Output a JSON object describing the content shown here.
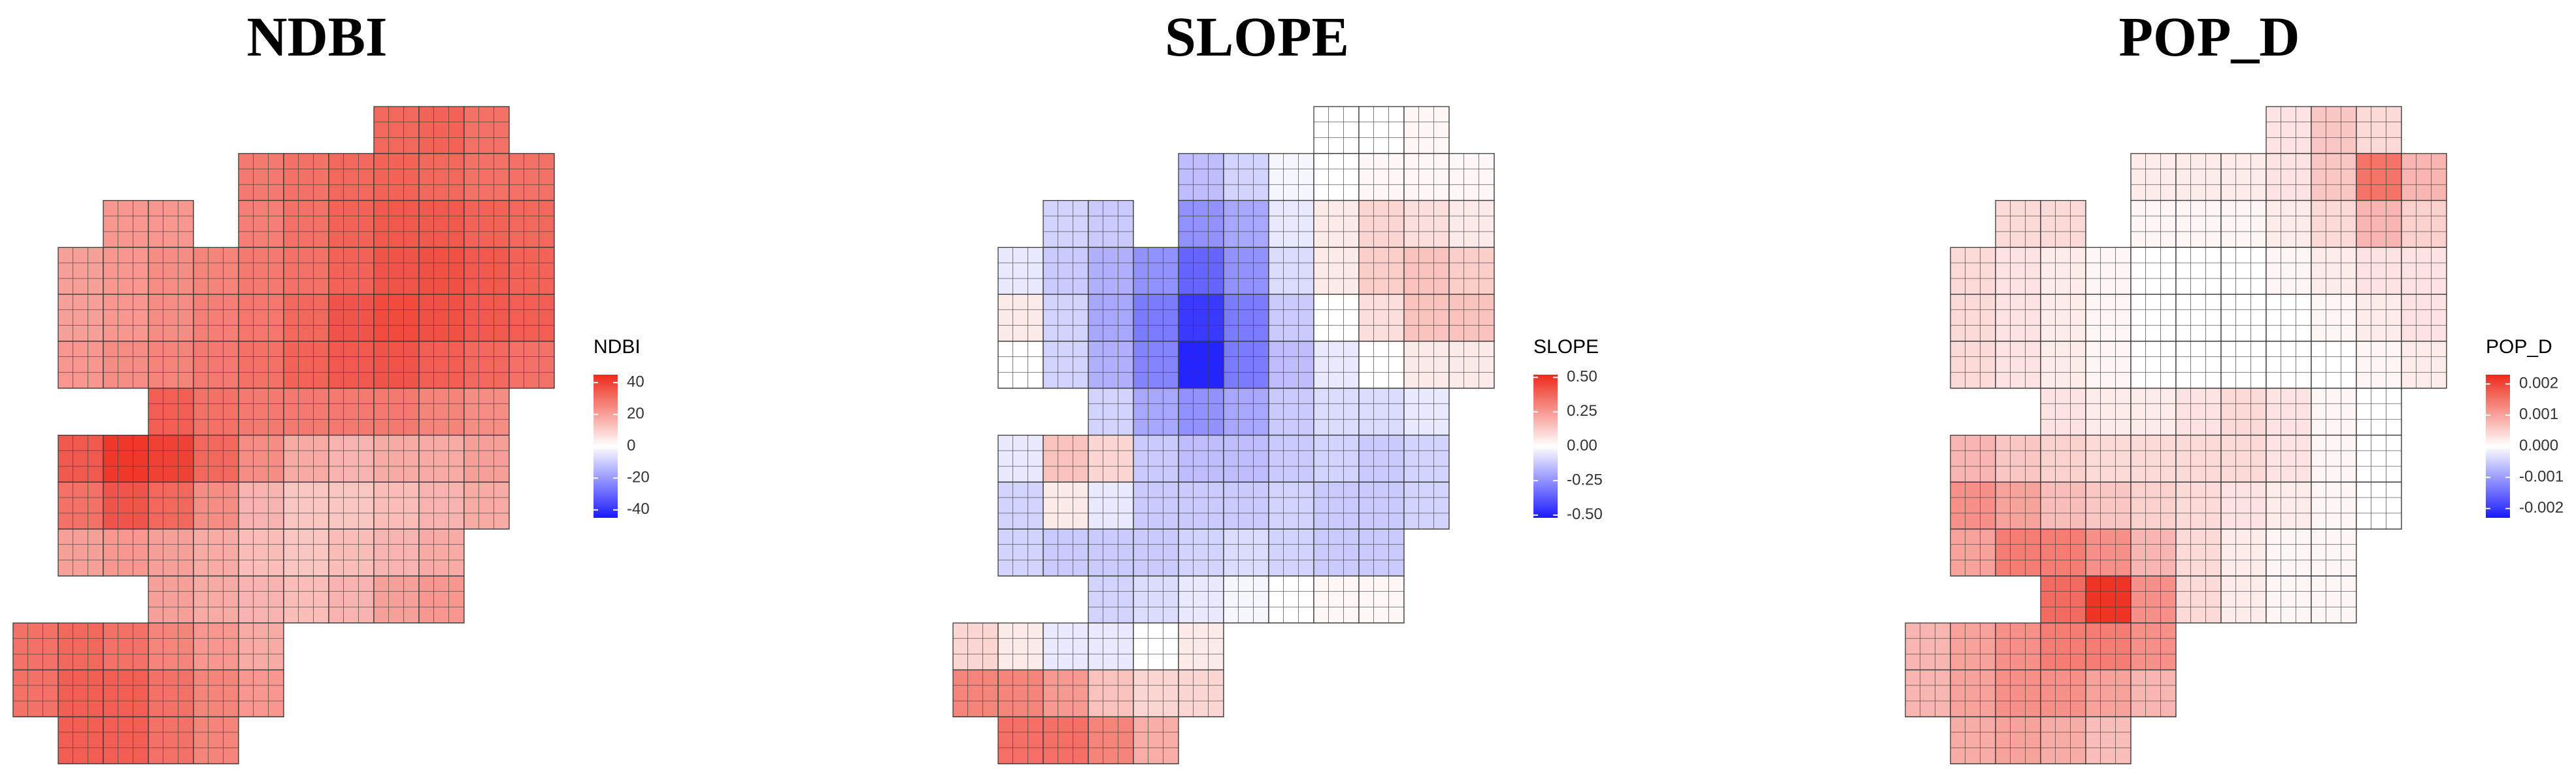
{
  "chart_data": [
    {
      "type": "heatmap",
      "title": "NDBI",
      "legend_title": "NDBI",
      "colors": {
        "low": "#1b1bff",
        "mid": "#ffffff",
        "high": "#ee2a1b"
      },
      "clim": [
        -45,
        45
      ],
      "cticks": [
        40,
        20,
        0,
        -20,
        -40
      ],
      "cells": [
        [
          null,
          null,
          null,
          null,
          null,
          null,
          null,
          null,
          32,
          33,
          30,
          null
        ],
        [
          null,
          null,
          null,
          null,
          null,
          28,
          30,
          32,
          33,
          32,
          30,
          30
        ],
        [
          null,
          null,
          22,
          22,
          null,
          27,
          30,
          33,
          35,
          35,
          33,
          32
        ],
        [
          null,
          20,
          22,
          24,
          26,
          28,
          30,
          33,
          36,
          37,
          35,
          33
        ],
        [
          null,
          20,
          22,
          24,
          27,
          29,
          32,
          36,
          38,
          37,
          35,
          34
        ],
        [
          null,
          22,
          24,
          26,
          28,
          30,
          33,
          35,
          36,
          34,
          32,
          30
        ],
        [
          null,
          null,
          null,
          34,
          30,
          28,
          28,
          28,
          28,
          26,
          24,
          null
        ],
        [
          null,
          35,
          42,
          40,
          32,
          24,
          18,
          16,
          18,
          18,
          20,
          null
        ],
        [
          null,
          30,
          36,
          32,
          24,
          16,
          12,
          12,
          14,
          16,
          18,
          null
        ],
        [
          null,
          20,
          22,
          20,
          18,
          14,
          12,
          14,
          16,
          18,
          null,
          null
        ],
        [
          null,
          null,
          null,
          20,
          18,
          16,
          14,
          16,
          20,
          22,
          null,
          null
        ],
        [
          30,
          32,
          30,
          26,
          22,
          18,
          null,
          null,
          null,
          null,
          null,
          null
        ],
        [
          30,
          34,
          34,
          30,
          26,
          22,
          null,
          null,
          null,
          null,
          null,
          null
        ],
        [
          null,
          34,
          34,
          30,
          26,
          null,
          null,
          null,
          null,
          null,
          null,
          null
        ]
      ]
    },
    {
      "type": "heatmap",
      "title": "SLOPE",
      "legend_title": "SLOPE",
      "colors": {
        "low": "#1b1bff",
        "mid": "#ffffff",
        "high": "#ee2a1b"
      },
      "clim": [
        -0.52,
        0.52
      ],
      "cticks": [
        {
          "value": 0.5,
          "label": "0.50"
        },
        {
          "value": 0.25,
          "label": "0.25"
        },
        {
          "value": 0,
          "label": "0.00"
        },
        {
          "value": -0.25,
          "label": "-0.25"
        },
        {
          "value": -0.5,
          "label": "-0.50"
        }
      ],
      "cells": [
        [
          null,
          null,
          null,
          null,
          null,
          null,
          null,
          null,
          0,
          0,
          0.02,
          null
        ],
        [
          null,
          null,
          null,
          null,
          null,
          -0.15,
          -0.1,
          -0.02,
          0,
          0.02,
          0.02,
          0.02
        ],
        [
          null,
          null,
          -0.1,
          -0.12,
          null,
          -0.25,
          -0.2,
          -0.05,
          0.05,
          0.1,
          0.08,
          0.05
        ],
        [
          null,
          -0.05,
          -0.12,
          -0.18,
          -0.25,
          -0.35,
          -0.25,
          -0.08,
          0.05,
          0.12,
          0.15,
          0.12
        ],
        [
          null,
          0.05,
          -0.1,
          -0.2,
          -0.3,
          -0.45,
          -0.3,
          -0.12,
          0,
          0.08,
          0.15,
          0.15
        ],
        [
          null,
          0,
          -0.1,
          -0.18,
          -0.28,
          -0.5,
          -0.3,
          -0.15,
          -0.05,
          0,
          0.05,
          0.05
        ],
        [
          null,
          null,
          null,
          -0.1,
          -0.2,
          -0.25,
          -0.2,
          -0.12,
          -0.08,
          -0.08,
          -0.05,
          null
        ],
        [
          null,
          -0.05,
          0.15,
          0.1,
          -0.12,
          -0.15,
          -0.15,
          -0.12,
          -0.1,
          -0.12,
          -0.1,
          null
        ],
        [
          null,
          -0.1,
          0.05,
          -0.05,
          -0.12,
          -0.12,
          -0.12,
          -0.1,
          -0.12,
          -0.12,
          -0.1,
          null
        ],
        [
          null,
          -0.1,
          -0.12,
          -0.12,
          -0.12,
          -0.1,
          -0.08,
          -0.1,
          -0.12,
          -0.12,
          null,
          null
        ],
        [
          null,
          null,
          null,
          -0.1,
          -0.08,
          -0.05,
          -0.02,
          0,
          0.02,
          0.02,
          null,
          null
        ],
        [
          0.1,
          0.05,
          -0.05,
          -0.05,
          0,
          0.05,
          null,
          null,
          null,
          null,
          null,
          null
        ],
        [
          0.3,
          0.3,
          0.25,
          0.15,
          0.1,
          0.1,
          null,
          null,
          null,
          null,
          null,
          null
        ],
        [
          null,
          0.35,
          0.35,
          0.3,
          0.2,
          null,
          null,
          null,
          null,
          null,
          null,
          null
        ]
      ]
    },
    {
      "type": "heatmap",
      "title": "POP_D",
      "legend_title": "POP_D",
      "colors": {
        "low": "#1b1bff",
        "mid": "#ffffff",
        "high": "#ee2a1b"
      },
      "clim": [
        -0.0023,
        0.0023
      ],
      "cticks": [
        0.002,
        0.001,
        {
          "value": 0,
          "label": "0.000"
        },
        -0.001,
        -0.002
      ],
      "cells": [
        [
          null,
          null,
          null,
          null,
          null,
          null,
          null,
          null,
          0.0003,
          0.0006,
          0.0004,
          null
        ],
        [
          null,
          null,
          null,
          null,
          null,
          0.0002,
          0.0002,
          0.0002,
          0.0003,
          0.0006,
          0.0015,
          0.0008
        ],
        [
          null,
          null,
          0.0004,
          0.0004,
          null,
          0.0001,
          0.0001,
          0.0001,
          0.0002,
          0.0004,
          0.0008,
          0.0005
        ],
        [
          null,
          0.0004,
          0.0003,
          0.0002,
          0.0001,
          0,
          0,
          0,
          0.0001,
          0.0002,
          0.0003,
          0.0003
        ],
        [
          null,
          0.0004,
          0.0003,
          0.0002,
          0.0001,
          0,
          0,
          0,
          0,
          0.0001,
          0.0002,
          0.0003
        ],
        [
          null,
          0.0004,
          0.0003,
          0.0002,
          0.0001,
          0,
          0,
          0,
          0,
          0,
          0.0001,
          0.0002
        ],
        [
          null,
          null,
          null,
          0.0003,
          0.0002,
          0.0002,
          0.0003,
          0.0004,
          0.0003,
          0.0001,
          0,
          null
        ],
        [
          null,
          0.0008,
          0.0006,
          0.0005,
          0.0004,
          0.0004,
          0.0004,
          0.0004,
          0.0003,
          0.0001,
          0,
          null
        ],
        [
          null,
          0.0012,
          0.001,
          0.0007,
          0.0006,
          0.0005,
          0.0004,
          0.0003,
          0.0002,
          0.0001,
          0,
          null
        ],
        [
          null,
          0.001,
          0.0014,
          0.0014,
          0.0012,
          0.0008,
          0.0004,
          0.0002,
          0.0001,
          0.0001,
          null,
          null
        ],
        [
          null,
          null,
          null,
          0.0016,
          0.0022,
          0.0012,
          0.0004,
          0.0002,
          0.0001,
          0.0001,
          null,
          null
        ],
        [
          0.0008,
          0.001,
          0.0012,
          0.0014,
          0.0014,
          0.0012,
          null,
          null,
          null,
          null,
          null,
          null
        ],
        [
          0.0008,
          0.001,
          0.0012,
          0.0012,
          0.001,
          0.0008,
          null,
          null,
          null,
          null,
          null,
          null
        ],
        [
          null,
          0.0009,
          0.001,
          0.0009,
          0.0007,
          null,
          null,
          null,
          null,
          null,
          null,
          null
        ]
      ]
    }
  ]
}
